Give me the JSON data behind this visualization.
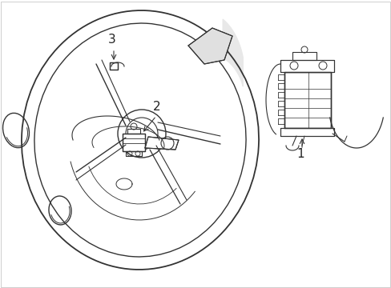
{
  "background_color": "#ffffff",
  "line_color": "#333333",
  "label_1": "1",
  "label_2": "2",
  "label_3": "3",
  "label_fontsize": 11,
  "label_color": "#222222",
  "fig_width": 4.89,
  "fig_height": 3.6,
  "dpi": 100
}
